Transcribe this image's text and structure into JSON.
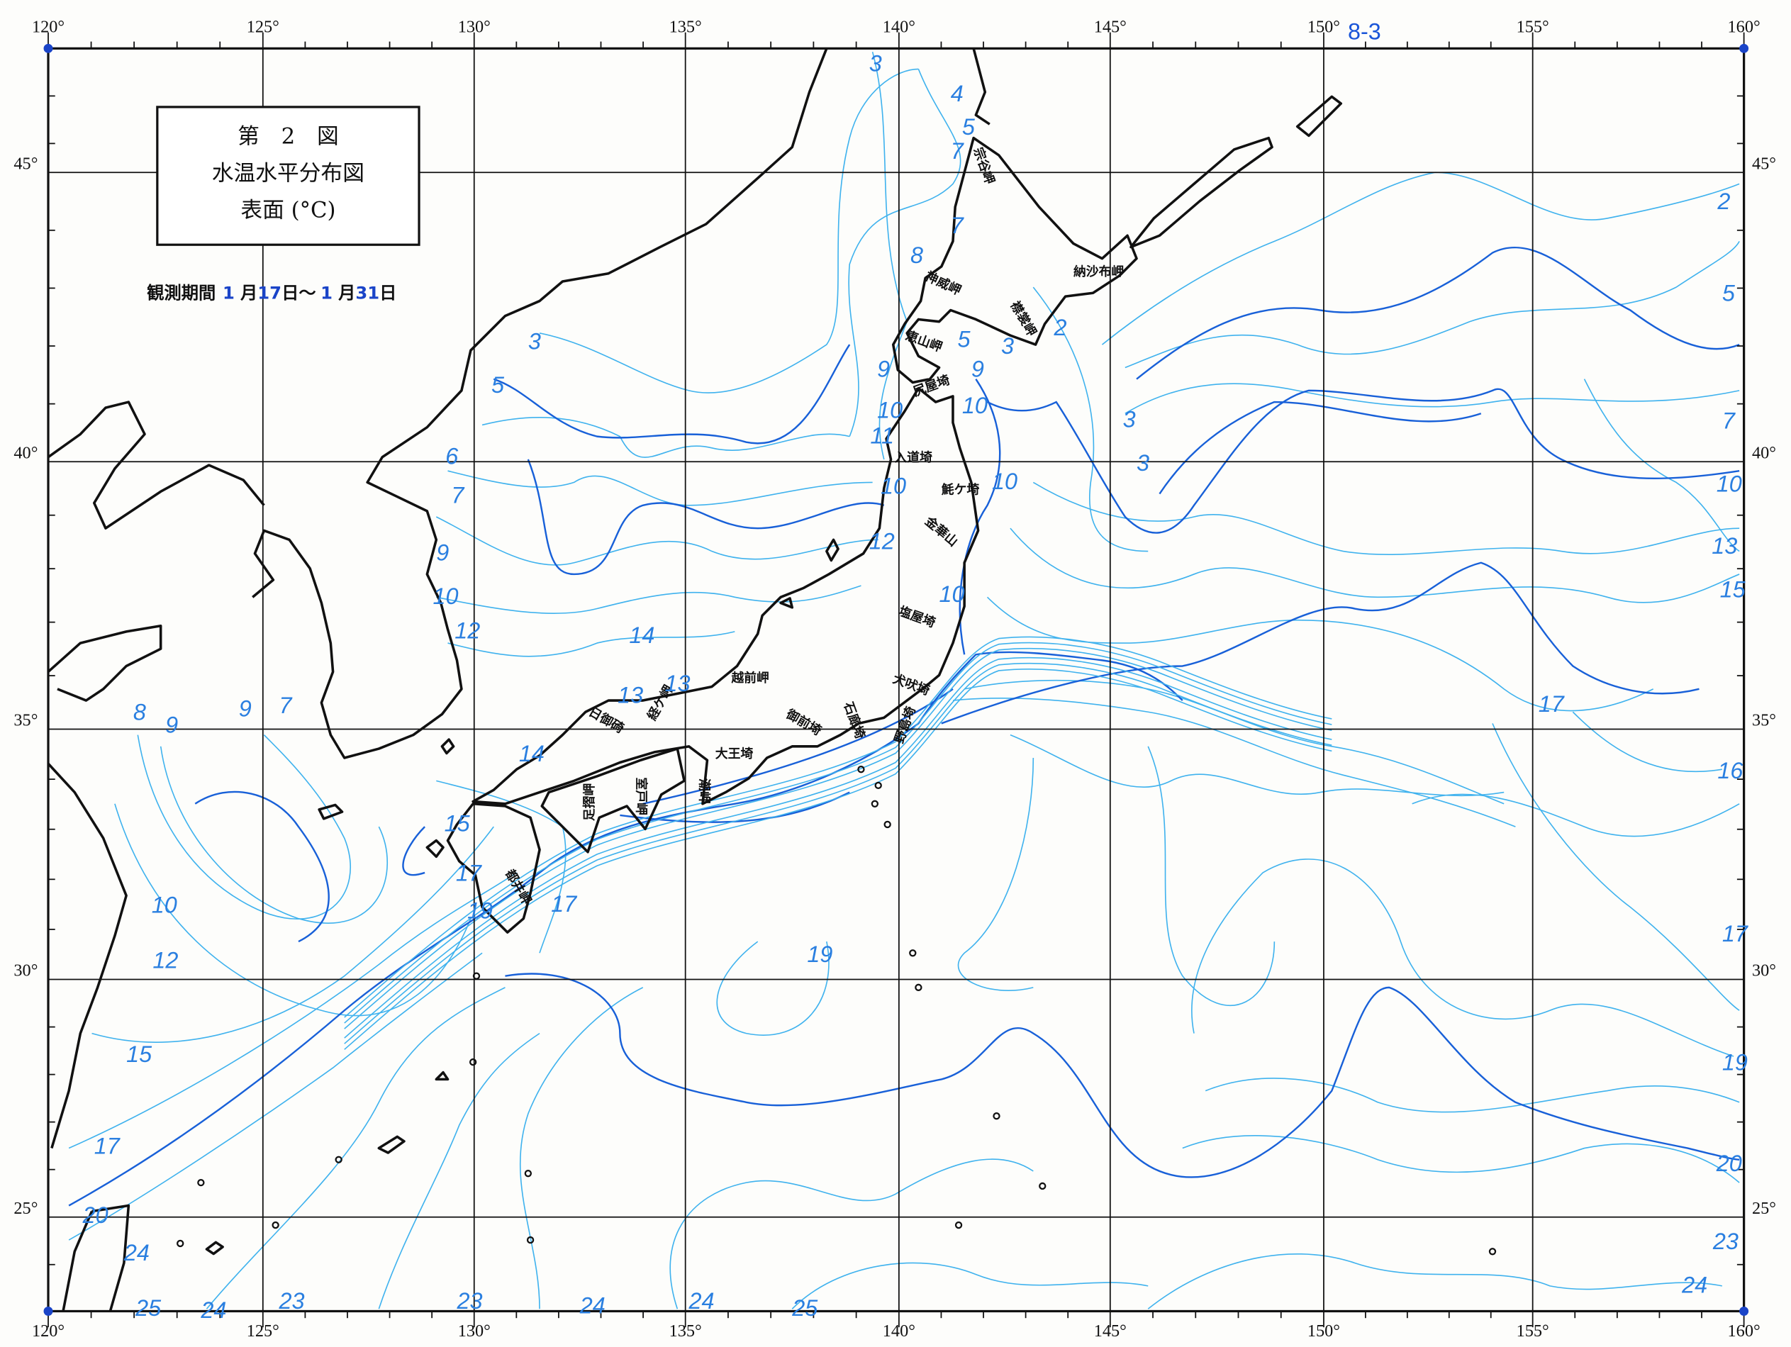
{
  "title_box": {
    "line1": "第　2　図",
    "line2": "水温水平分布図",
    "line3": "表面 (°C)"
  },
  "observation_period": {
    "label": "観測期間",
    "start_month": "1",
    "month_char": "月",
    "start_day": "17",
    "day_char": "日",
    "separator": "～",
    "end_month": "1",
    "end_day": "31"
  },
  "sheet_number": "8-3",
  "longitude_labels": [
    "120°",
    "125°",
    "130°",
    "135°",
    "140°",
    "145°",
    "150°",
    "155°",
    "160°"
  ],
  "latitude_labels": [
    "45°",
    "40°",
    "35°",
    "30°",
    "25°"
  ],
  "place_names": [
    "宗谷岬",
    "神威岬",
    "襟裳岬",
    "納沙布岬",
    "恵山岬",
    "尻屋埼",
    "入道埼",
    "魹ケ埼",
    "金華山",
    "塩屋埼",
    "犬吠埼",
    "野島埼",
    "石廊埼",
    "御前埼",
    "大王埼",
    "潮岬",
    "室戸岬",
    "足摺岬",
    "日御碕",
    "経ケ岬",
    "越前岬",
    "都井岬"
  ],
  "contour_labels": [
    "3",
    "4",
    "5",
    "7",
    "7",
    "8",
    "9",
    "10",
    "11",
    "10",
    "12",
    "3",
    "5",
    "6",
    "7",
    "9",
    "10",
    "12",
    "14",
    "14",
    "13",
    "13",
    "8",
    "9",
    "9",
    "7",
    "10",
    "12",
    "15",
    "17",
    "20",
    "24",
    "25",
    "24",
    "23",
    "23",
    "24",
    "24",
    "25",
    "19",
    "5",
    "3",
    "2",
    "3",
    "3",
    "9",
    "10",
    "10",
    "10",
    "2",
    "5",
    "7",
    "10",
    "13",
    "15",
    "17",
    "16",
    "17",
    "19",
    "20",
    "23",
    "24",
    "15",
    "17",
    "19",
    "17"
  ],
  "colors": {
    "coastline": "#111111",
    "isotherm_light": "#3fb2ee",
    "isotherm_dark": "#1860d8",
    "accent_text": "#1a44c8"
  }
}
